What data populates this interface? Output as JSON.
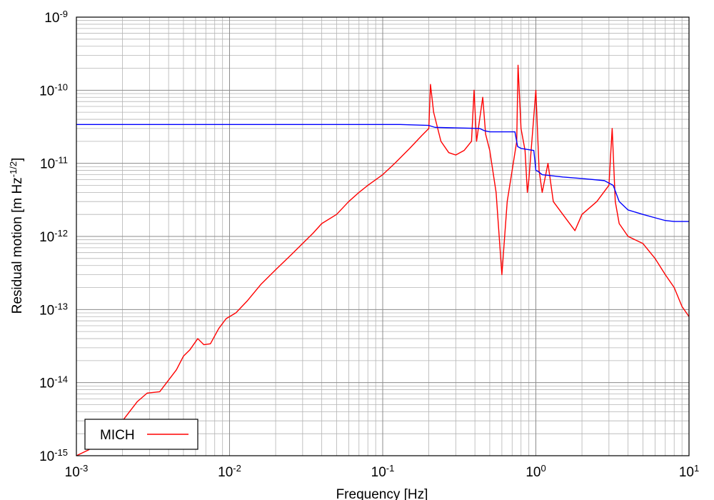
{
  "chart_data": {
    "type": "line",
    "x_scale": "log",
    "y_scale": "log",
    "xlim": [
      0.001,
      10
    ],
    "ylim": [
      1e-15,
      1e-09
    ],
    "grid": true,
    "xlabel": "Frequency [Hz]",
    "ylabel": "Residual motion [m Hz^-1/2]",
    "ylabel_parts": {
      "main": "Residual motion [m Hz",
      "sup": "-1/2",
      "end": "]"
    },
    "x_ticks": [
      {
        "base": "10",
        "exp": "-3",
        "value": 0.001
      },
      {
        "base": "10",
        "exp": "-2",
        "value": 0.01
      },
      {
        "base": "10",
        "exp": "-1",
        "value": 0.1
      },
      {
        "base": "10",
        "exp": "0",
        "value": 1
      },
      {
        "base": "10",
        "exp": "1",
        "value": 10
      }
    ],
    "y_ticks": [
      {
        "base": "10",
        "exp": "-15",
        "value": 1e-15
      },
      {
        "base": "10",
        "exp": "-14",
        "value": 1e-14
      },
      {
        "base": "10",
        "exp": "-13",
        "value": 1e-13
      },
      {
        "base": "10",
        "exp": "-12",
        "value": 1e-12
      },
      {
        "base": "10",
        "exp": "-11",
        "value": 1e-11
      },
      {
        "base": "10",
        "exp": "-10",
        "value": 1e-10
      },
      {
        "base": "10",
        "exp": "-9",
        "value": 1e-09
      }
    ],
    "legend": {
      "placement": "bottom-left"
    },
    "series": [
      {
        "name": "MICH",
        "color": "#ff0000",
        "x": [
          0.001,
          0.0012,
          0.0015,
          0.0018,
          0.002,
          0.0025,
          0.0029,
          0.0035,
          0.0045,
          0.005,
          0.0055,
          0.0062,
          0.0068,
          0.0075,
          0.0085,
          0.0095,
          0.011,
          0.013,
          0.016,
          0.02,
          0.025,
          0.03,
          0.035,
          0.04,
          0.05,
          0.06,
          0.07,
          0.08,
          0.1,
          0.12,
          0.15,
          0.18,
          0.2,
          0.205,
          0.215,
          0.24,
          0.27,
          0.3,
          0.34,
          0.38,
          0.395,
          0.41,
          0.45,
          0.47,
          0.5,
          0.55,
          0.6,
          0.65,
          0.7,
          0.75,
          0.765,
          0.8,
          0.85,
          0.88,
          0.9,
          1.0,
          1.05,
          1.1,
          1.2,
          1.3,
          1.5,
          1.8,
          2.0,
          2.5,
          3.0,
          3.15,
          3.3,
          3.5,
          4.0,
          5.0,
          6.0,
          7.0,
          8.0,
          9.0,
          10.0
        ],
        "y": [
          1e-15,
          1.2e-15,
          1.6e-15,
          2.2e-15,
          3e-15,
          5.5e-15,
          7.2e-15,
          7.5e-15,
          1.5e-14,
          2.3e-14,
          2.8e-14,
          4e-14,
          3.3e-14,
          3.4e-14,
          5.5e-14,
          7.5e-14,
          9e-14,
          1.3e-13,
          2.2e-13,
          3.5e-13,
          5.5e-13,
          8e-13,
          1.1e-12,
          1.5e-12,
          2e-12,
          3e-12,
          4e-12,
          5e-12,
          7e-12,
          1e-11,
          1.6e-11,
          2.4e-11,
          3e-11,
          1.2e-10,
          5e-11,
          2e-11,
          1.4e-11,
          1.3e-11,
          1.5e-11,
          2e-11,
          1e-10,
          2e-11,
          8e-11,
          2.5e-11,
          1.5e-11,
          4e-12,
          3e-13,
          3e-12,
          8e-12,
          2e-11,
          2.2e-10,
          3e-11,
          1.5e-11,
          4e-12,
          6e-12,
          1e-10,
          8e-12,
          4e-12,
          1e-11,
          3e-12,
          2e-12,
          1.2e-12,
          2e-12,
          3e-12,
          5e-12,
          3e-11,
          3e-12,
          1.5e-12,
          1e-12,
          8e-13,
          5e-13,
          3e-13,
          2e-13,
          1.1e-13,
          8e-14
        ]
      },
      {
        "color": "#0000ff",
        "x": [
          0.001,
          0.13,
          0.2,
          0.22,
          0.43,
          0.46,
          0.5,
          0.73,
          0.76,
          0.8,
          0.97,
          1.0,
          1.03,
          1.1,
          1.5,
          2.0,
          2.8,
          3.2,
          3.5,
          4.0,
          5.0,
          6.0,
          7.0,
          8.0,
          10.0
        ],
        "y": [
          3.4e-11,
          3.4e-11,
          3.3e-11,
          3.1e-11,
          3e-11,
          2.8e-11,
          2.7e-11,
          2.7e-11,
          1.7e-11,
          1.6e-11,
          1.5e-11,
          8e-12,
          7.8e-12,
          7e-12,
          6.5e-12,
          6.2e-12,
          5.8e-12,
          5e-12,
          3e-12,
          2.3e-12,
          2e-12,
          1.8e-12,
          1.65e-12,
          1.6e-12,
          1.6e-12
        ]
      }
    ]
  }
}
